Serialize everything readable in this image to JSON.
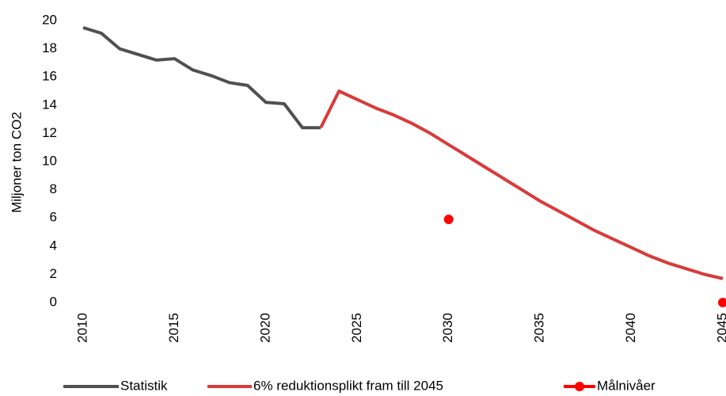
{
  "chart_data": {
    "type": "line",
    "y_label": "Miljoner ton CO2",
    "x": [
      2010,
      2011,
      2012,
      2013,
      2014,
      2015,
      2016,
      2017,
      2018,
      2019,
      2020,
      2021,
      2022,
      2023,
      2024,
      2025,
      2026,
      2027,
      2028,
      2029,
      2030,
      2031,
      2032,
      2033,
      2034,
      2035,
      2036,
      2037,
      2038,
      2039,
      2040,
      2041,
      2042,
      2043,
      2044,
      2045
    ],
    "series": [
      {
        "name": "Statistik",
        "color": "#505050",
        "line": true,
        "marker": false,
        "values": [
          19.5,
          19.1,
          18.0,
          17.6,
          17.2,
          17.3,
          16.5,
          16.1,
          15.6,
          15.4,
          14.2,
          14.1,
          12.4,
          12.4,
          null,
          null,
          null,
          null,
          null,
          null,
          null,
          null,
          null,
          null,
          null,
          null,
          null,
          null,
          null,
          null,
          null,
          null,
          null,
          null,
          null,
          null
        ]
      },
      {
        "name": "6% reduktionsplikt fram till 2045",
        "color": "#d93a3a",
        "line": true,
        "marker": false,
        "values": [
          null,
          null,
          null,
          null,
          null,
          null,
          null,
          null,
          null,
          null,
          null,
          null,
          null,
          12.4,
          15.0,
          14.4,
          13.8,
          13.3,
          12.7,
          12.0,
          11.2,
          10.4,
          9.6,
          8.8,
          8.0,
          7.2,
          6.5,
          5.8,
          5.1,
          4.5,
          3.9,
          3.3,
          2.8,
          2.4,
          2.0,
          1.7
        ]
      },
      {
        "name": "Målnivåer",
        "color": "#ff0000",
        "line": false,
        "marker": true,
        "values": [
          null,
          null,
          null,
          null,
          null,
          null,
          null,
          null,
          null,
          null,
          null,
          null,
          null,
          null,
          null,
          null,
          null,
          null,
          null,
          null,
          5.9,
          null,
          null,
          null,
          null,
          null,
          null,
          null,
          null,
          null,
          null,
          null,
          null,
          null,
          null,
          0
        ]
      }
    ],
    "xlim": [
      2010,
      2045
    ],
    "xticks": [
      2010,
      2015,
      2020,
      2025,
      2030,
      2035,
      2040,
      2045
    ],
    "ylim": [
      0,
      20
    ],
    "yticks": [
      0,
      2,
      4,
      6,
      8,
      10,
      12,
      14,
      16,
      18,
      20
    ],
    "grid": false,
    "legend": "bottom"
  }
}
